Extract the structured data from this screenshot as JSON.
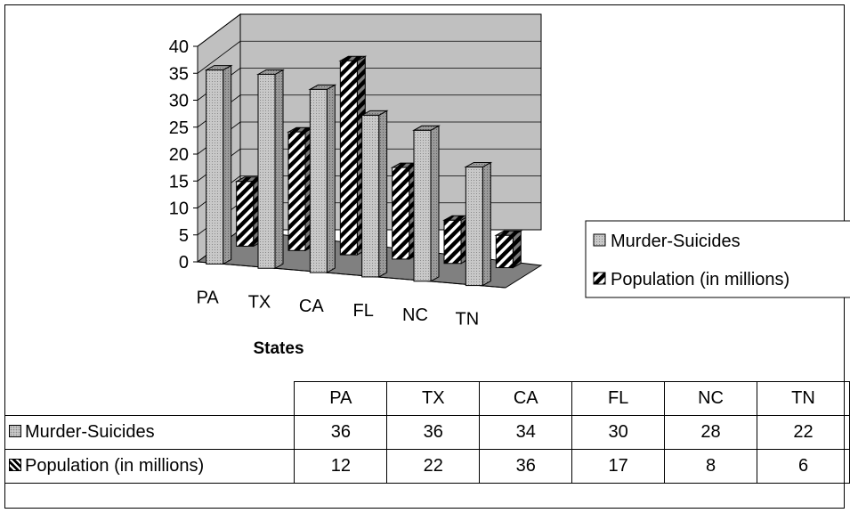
{
  "chart_data": {
    "type": "bar",
    "title": "",
    "xlabel": "States",
    "ylabel": "",
    "categories": [
      "PA",
      "TX",
      "CA",
      "FL",
      "NC",
      "TN"
    ],
    "series": [
      {
        "name": "Murder-Suicides",
        "values": [
          36,
          36,
          34,
          30,
          28,
          22
        ],
        "pattern": "dotted-gray"
      },
      {
        "name": "Population (in millions)",
        "values": [
          12,
          22,
          36,
          17,
          8,
          6
        ],
        "pattern": "diagonal-hatch"
      }
    ],
    "ylim": [
      0,
      40
    ],
    "yticks": [
      "0",
      "5",
      "10",
      "15",
      "20",
      "25",
      "30",
      "35",
      "40"
    ],
    "style": "3d-column",
    "grid": true,
    "legend_position": "right",
    "data_table": true,
    "colors": {
      "wall": "#c0c0c0",
      "floor": "#808080",
      "bar_dots": "#c8c8c8",
      "hatch": "#000000"
    }
  }
}
